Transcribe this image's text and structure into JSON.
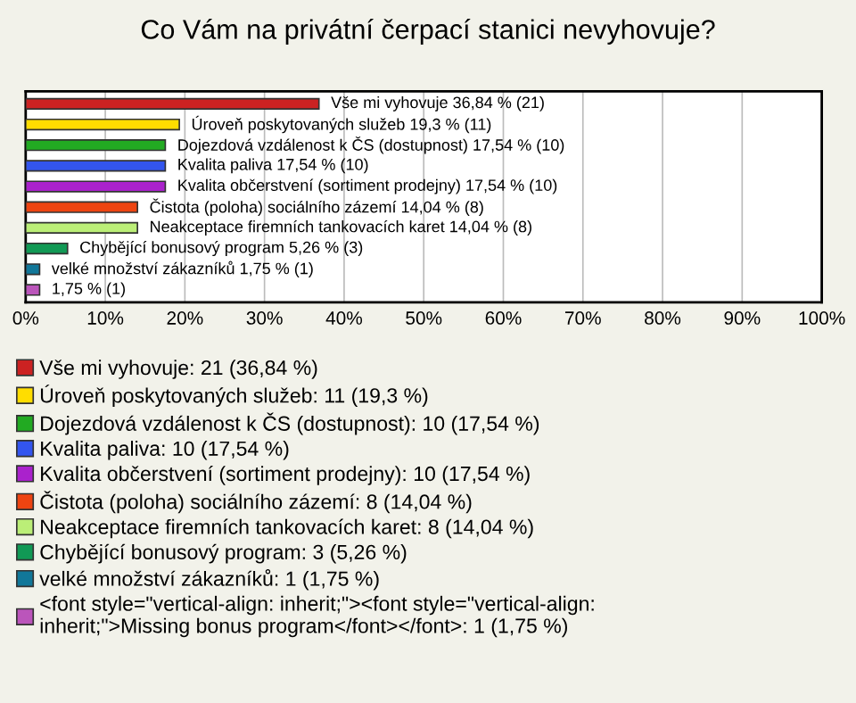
{
  "chart_data": {
    "type": "bar",
    "orientation": "horizontal",
    "title": "Co Vám na privátní čerpací stanici nevyhovuje?",
    "categories": [
      null,
      null,
      null,
      null,
      null,
      null,
      null,
      null,
      null,
      null
    ],
    "xlim": [
      0,
      100
    ],
    "xticks": [
      {
        "value": 0,
        "label": "0%"
      },
      {
        "value": 10,
        "label": "10%"
      },
      {
        "value": 20,
        "label": "20%"
      },
      {
        "value": 30,
        "label": "30%"
      },
      {
        "value": 40,
        "label": "40%"
      },
      {
        "value": 50,
        "label": "50%"
      },
      {
        "value": 60,
        "label": "60%"
      },
      {
        "value": 70,
        "label": "70%"
      },
      {
        "value": 80,
        "label": "80%"
      },
      {
        "value": 90,
        "label": "90%"
      },
      {
        "value": 100,
        "label": "100%"
      }
    ],
    "grid": "x",
    "legend": "bottom",
    "series": [
      {
        "name": "Vše mi vyhovuje: 21 (36,84 %)",
        "color": "#cc2222",
        "values": [
          36.84,
          null,
          null,
          null,
          null,
          null,
          null,
          null,
          null,
          null
        ],
        "value_labels": [
          "Vše mi vyhovuje 36,84 % (21)",
          null,
          null,
          null,
          null,
          null,
          null,
          null,
          null,
          null
        ]
      },
      {
        "name": "Úroveň poskytovaných služeb: 11 (19,3 %)",
        "color": "#ffdd00",
        "values": [
          null,
          19.3,
          null,
          null,
          null,
          null,
          null,
          null,
          null,
          null
        ],
        "value_labels": [
          null,
          "Úroveň poskytovaných služeb 19,3 % (11)",
          null,
          null,
          null,
          null,
          null,
          null,
          null,
          null
        ]
      },
      {
        "name": "Dojezdová vzdálenost k ČS (dostupnost): 10 (17,54 %)",
        "color": "#22aa22",
        "values": [
          null,
          null,
          17.54,
          null,
          null,
          null,
          null,
          null,
          null,
          null
        ],
        "value_labels": [
          null,
          null,
          "Dojezdová vzdálenost k ČS (dostupnost) 17,54 % (10)",
          null,
          null,
          null,
          null,
          null,
          null,
          null
        ]
      },
      {
        "name": "Kvalita paliva: 10 (17,54 %)",
        "color": "#3355ee",
        "values": [
          null,
          null,
          null,
          17.54,
          null,
          null,
          null,
          null,
          null,
          null
        ],
        "value_labels": [
          null,
          null,
          null,
          "Kvalita paliva 17,54 % (10)",
          null,
          null,
          null,
          null,
          null,
          null
        ]
      },
      {
        "name": "Kvalita občerstvení (sortiment prodejny): 10 (17,54 %)",
        "color": "#aa22cc",
        "values": [
          null,
          null,
          null,
          null,
          17.54,
          null,
          null,
          null,
          null,
          null
        ],
        "value_labels": [
          null,
          null,
          null,
          null,
          "Kvalita občerstvení (sortiment prodejny) 17,54 % (10)",
          null,
          null,
          null,
          null,
          null
        ]
      },
      {
        "name": "Čistota (poloha) sociálního zázemí: 8 (14,04 %)",
        "color": "#ee4411",
        "values": [
          null,
          null,
          null,
          null,
          null,
          14.04,
          null,
          null,
          null,
          null
        ],
        "value_labels": [
          null,
          null,
          null,
          null,
          null,
          "Čistota (poloha) sociálního zázemí 14,04 % (8)",
          null,
          null,
          null,
          null
        ]
      },
      {
        "name": "Neakceptace firemních tankovacích karet: 8 (14,04 %)",
        "color": "#bbee77",
        "values": [
          null,
          null,
          null,
          null,
          null,
          null,
          14.04,
          null,
          null,
          null
        ],
        "value_labels": [
          null,
          null,
          null,
          null,
          null,
          null,
          "Neakceptace firemních tankovacích karet 14,04 % (8)",
          null,
          null,
          null
        ]
      },
      {
        "name": "Chybějící bonusový program: 3 (5,26 %)",
        "color": "#119955",
        "values": [
          null,
          null,
          null,
          null,
          null,
          null,
          null,
          5.26,
          null,
          null
        ],
        "value_labels": [
          null,
          null,
          null,
          null,
          null,
          null,
          null,
          "Chybějící bonusový program 5,26 % (3)",
          null,
          null
        ]
      },
      {
        "name": "velké množství zákazníků: 1 (1,75 %)",
        "color": "#117799",
        "values": [
          null,
          null,
          null,
          null,
          null,
          null,
          null,
          null,
          1.75,
          null
        ],
        "value_labels": [
          null,
          null,
          null,
          null,
          null,
          null,
          null,
          null,
          "velké množství zákazníků 1,75 % (1)",
          null
        ]
      },
      {
        "name": "<font style=\"vertical-align: inherit;\"><font style=\"vertical-align:\ninherit;\">Missing bonus program</font></font>: 1 (1,75 %)",
        "color": "#bb55bb",
        "values": [
          null,
          null,
          null,
          null,
          null,
          null,
          null,
          null,
          null,
          1.75
        ],
        "value_labels": [
          null,
          null,
          null,
          null,
          null,
          null,
          null,
          null,
          null,
          "1,75 % (1)"
        ]
      }
    ]
  }
}
